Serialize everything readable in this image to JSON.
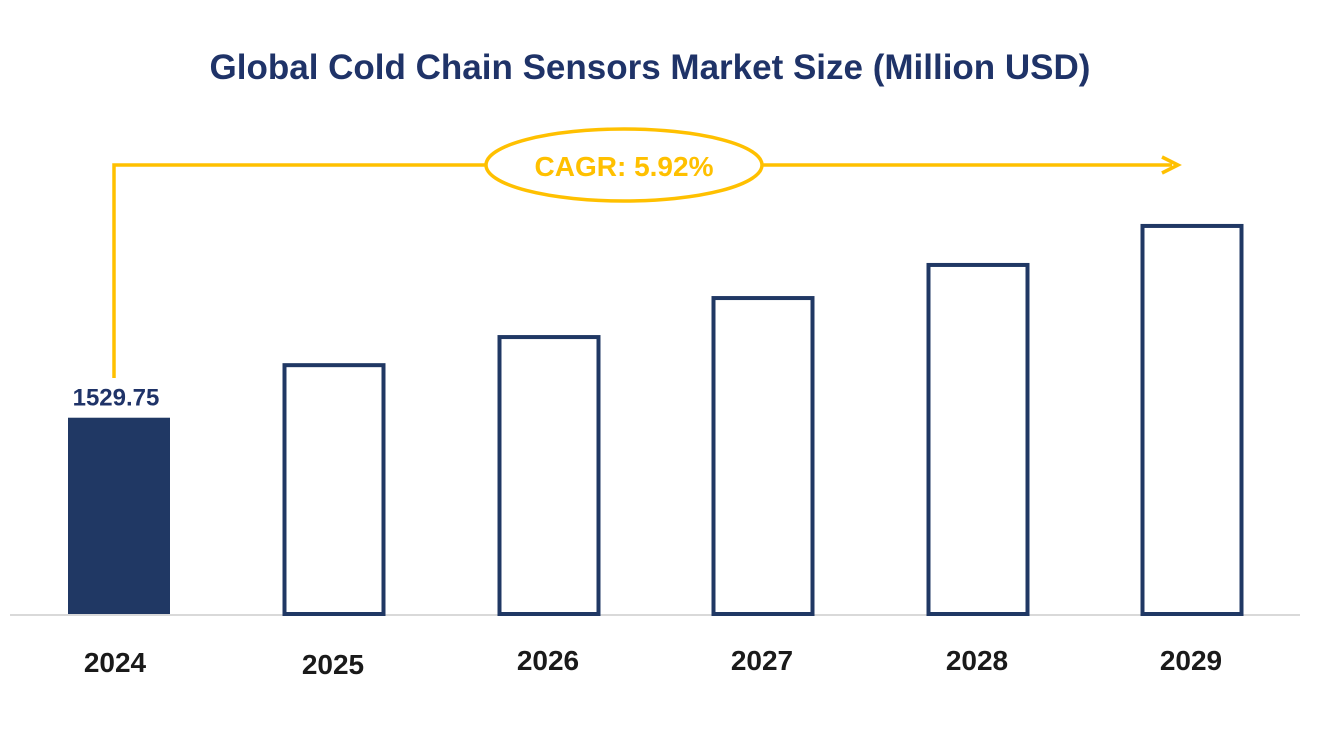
{
  "chart_data": {
    "type": "bar",
    "title": "Global Cold Chain Sensors Market Size (Million USD)",
    "categories": [
      "2024",
      "2025",
      "2026",
      "2027",
      "2028",
      "2029"
    ],
    "values": [
      1529.75,
      1951,
      2170,
      2474,
      2732,
      3036
    ],
    "data_labels": [
      "1529.75",
      "",
      "",
      "",
      "",
      ""
    ],
    "filled": [
      true,
      false,
      false,
      false,
      false,
      false
    ],
    "annotation": "CAGR: 5.92%",
    "xlabel": "",
    "ylabel": "",
    "ylim": [
      0,
      3850
    ],
    "grid": false,
    "colors": {
      "bar": "#203864",
      "title": "#1f3368",
      "annotation": "#ffc000",
      "axis": "#d9d9d9",
      "tick_label": "#1a1a1a"
    }
  }
}
